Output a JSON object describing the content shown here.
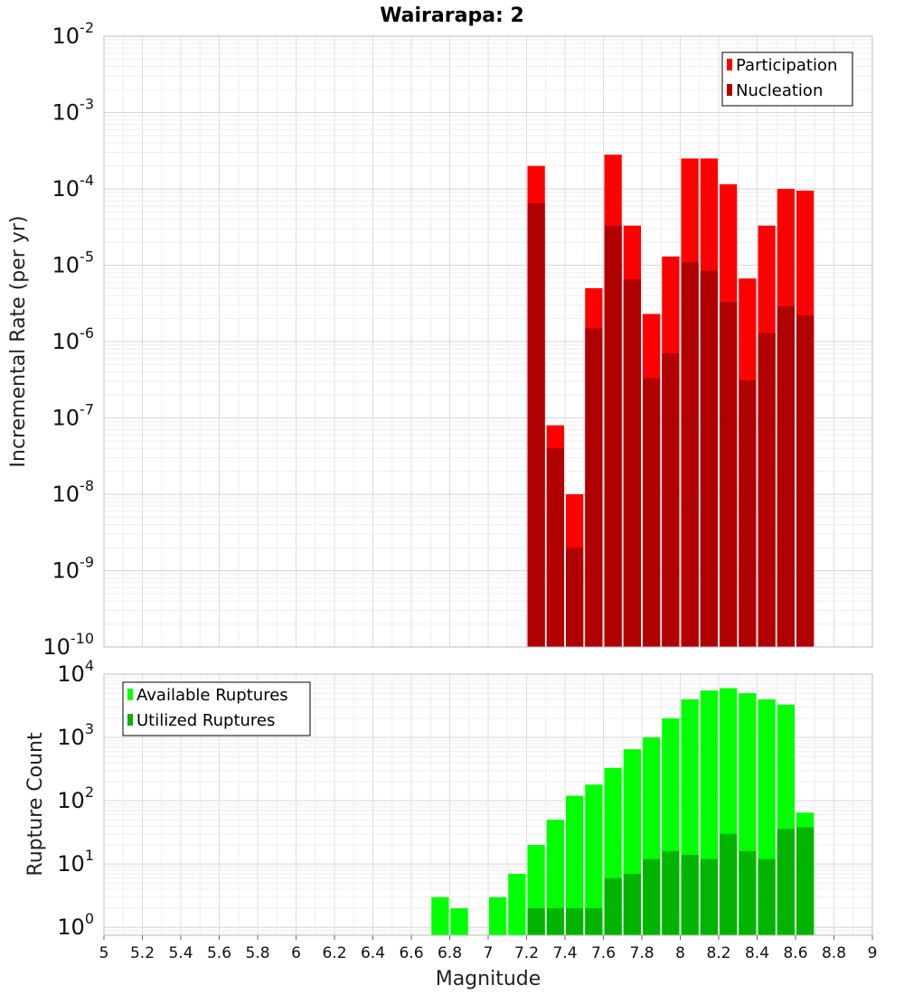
{
  "title": "Wairarapa: 2",
  "chart_data": [
    {
      "type": "bar",
      "panel": "top",
      "ylabel": "Incremental Rate (per yr)",
      "y_scale": "log",
      "ylim": [
        1e-10,
        0.01
      ],
      "xlim": [
        5,
        9
      ],
      "grid": true,
      "legend_position": "top-right",
      "x": [
        7.25,
        7.35,
        7.45,
        7.55,
        7.65,
        7.75,
        7.85,
        7.95,
        8.05,
        8.15,
        8.25,
        8.35,
        8.45,
        8.55,
        8.65
      ],
      "series": [
        {
          "name": "Participation",
          "color": "#ff0000",
          "values": [
            0.0002,
            8e-08,
            1e-08,
            5e-06,
            0.00028,
            3.3e-05,
            2.3e-06,
            1.3e-05,
            0.00025,
            0.00025,
            0.000115,
            6.7e-06,
            3.3e-05,
            0.0001,
            9.5e-05
          ]
        },
        {
          "name": "Nucleation",
          "color": "#b00000",
          "values": [
            6.5e-05,
            4e-08,
            2e-09,
            1.5e-06,
            3.3e-05,
            6.5e-06,
            3.3e-07,
            7e-07,
            1.1e-05,
            8.5e-06,
            3.3e-06,
            3.1e-07,
            1.3e-06,
            2.9e-06,
            2.2e-06
          ]
        }
      ]
    },
    {
      "type": "bar",
      "panel": "bottom",
      "xlabel": "Magnitude",
      "ylabel": "Rupture Count",
      "y_scale": "log",
      "ylim": [
        0.75,
        10000
      ],
      "xlim": [
        5,
        9
      ],
      "grid": true,
      "legend_position": "top-left",
      "x": [
        6.75,
        6.85,
        7.05,
        7.15,
        7.25,
        7.35,
        7.45,
        7.55,
        7.65,
        7.75,
        7.85,
        7.95,
        8.05,
        8.15,
        8.25,
        8.35,
        8.45,
        8.55,
        8.65
      ],
      "series": [
        {
          "name": "Available Ruptures",
          "color": "#00ff00",
          "values": [
            3,
            2,
            3,
            7,
            20,
            50,
            120,
            180,
            330,
            650,
            1000,
            2000,
            4000,
            5500,
            6000,
            5000,
            4000,
            3300,
            65
          ]
        },
        {
          "name": "Utilized Ruptures",
          "color": "#00b400",
          "values": [
            0,
            0,
            0,
            0,
            2,
            2,
            2,
            2,
            6,
            7,
            12,
            16,
            14,
            12,
            30,
            16,
            12,
            36,
            38
          ]
        }
      ]
    }
  ],
  "x_ticks": [
    "5",
    "5.2",
    "5.4",
    "5.6",
    "5.8",
    "6",
    "6.2",
    "6.4",
    "6.6",
    "6.8",
    "7",
    "7.2",
    "7.4",
    "7.6",
    "7.8",
    "8",
    "8.2",
    "8.4",
    "8.6",
    "8.8",
    "9"
  ],
  "top_y_ticks": [
    {
      "base": "10",
      "exp": "-2",
      "pow": -2
    },
    {
      "base": "10",
      "exp": "-3",
      "pow": -3
    },
    {
      "base": "10",
      "exp": "-4",
      "pow": -4
    },
    {
      "base": "10",
      "exp": "-5",
      "pow": -5
    },
    {
      "base": "10",
      "exp": "-6",
      "pow": -6
    },
    {
      "base": "10",
      "exp": "-7",
      "pow": -7
    },
    {
      "base": "10",
      "exp": "-8",
      "pow": -8
    },
    {
      "base": "10",
      "exp": "-9",
      "pow": -9
    },
    {
      "base": "10",
      "exp": "-10",
      "pow": -10
    }
  ],
  "bottom_y_ticks": [
    {
      "base": "10",
      "exp": "4",
      "pow": 4
    },
    {
      "base": "10",
      "exp": "3",
      "pow": 3
    },
    {
      "base": "10",
      "exp": "2",
      "pow": 2
    },
    {
      "base": "10",
      "exp": "1",
      "pow": 1
    },
    {
      "base": "10",
      "exp": "0",
      "pow": 0
    }
  ]
}
